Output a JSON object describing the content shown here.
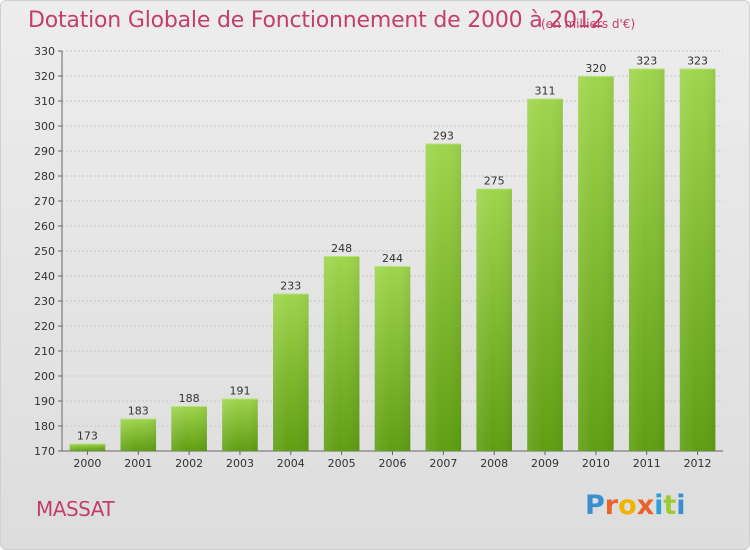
{
  "title": "Dotation Globale de Fonctionnement de 2000 à 2012",
  "unit": "(en milliers d'€)",
  "commune": "MASSAT",
  "brand": {
    "text": "Proxiti",
    "letter_colors": [
      "#3a8fd1",
      "#e9632b",
      "#f0b400",
      "#e9632b",
      "#2d9fd9",
      "#9acd32",
      "#3a8fd1"
    ]
  },
  "colors": {
    "bar_top": "#9fd54d",
    "bar_bottom": "#5f9e12",
    "title": "#c43e6a",
    "background": "#e6e6e6"
  },
  "chart_data": {
    "type": "bar",
    "categories": [
      "2000",
      "2001",
      "2002",
      "2003",
      "2004",
      "2005",
      "2006",
      "2007",
      "2008",
      "2009",
      "2010",
      "2011",
      "2012"
    ],
    "values": [
      173,
      183,
      188,
      191,
      233,
      248,
      244,
      293,
      275,
      311,
      320,
      323,
      323
    ],
    "ylim": [
      170,
      330
    ],
    "ytick_step": 10,
    "grid": true,
    "legend": "none"
  }
}
